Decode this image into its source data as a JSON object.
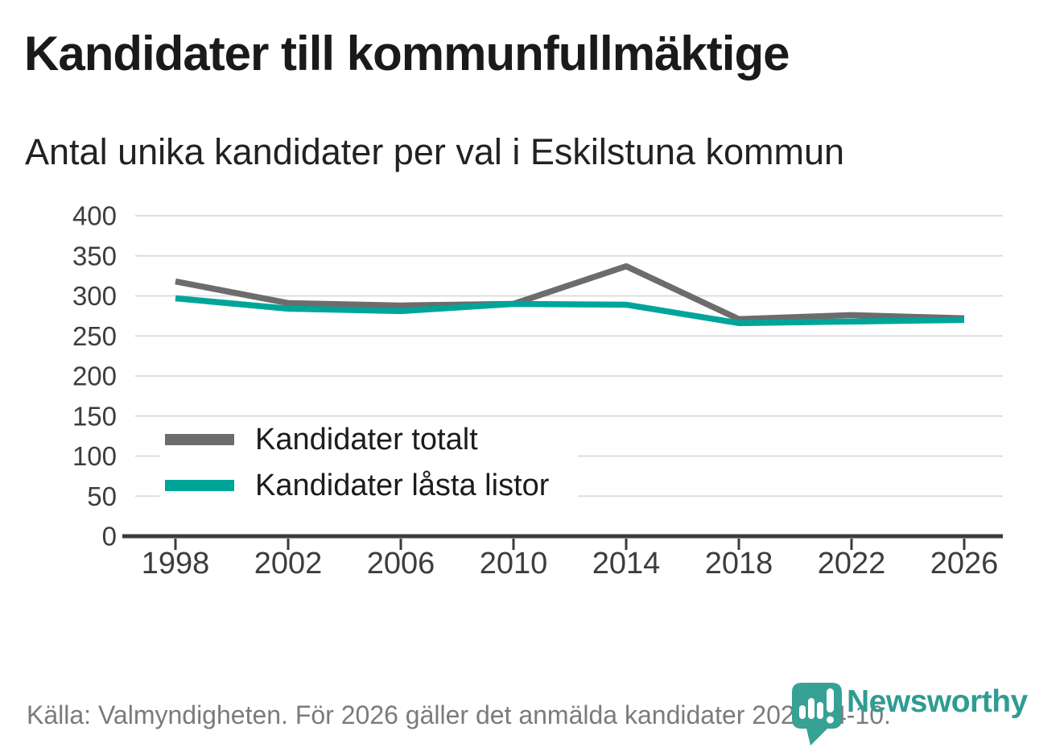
{
  "header": {
    "title": "Kandidater till kommunfullmäktige",
    "subtitle": "Antal unika kandidater per val i Eskilstuna kommun"
  },
  "footer": {
    "source": "Källa: Valmyndigheten. För 2026 gäller det anmälda kandidater 2026-04-10.",
    "brand": "Newsworthy"
  },
  "colors": {
    "series_total_gray": "#6c6c6c",
    "series_locked_teal": "#00a59a",
    "logo_teal": "#37a195",
    "grid": "#dedede",
    "axis": "#3b3b3b",
    "tick_text": "#3d3d3d",
    "title_text": "#1a1a19",
    "muted_text": "#7b7b7b"
  },
  "chart_data": {
    "type": "line",
    "title": "Kandidater till kommunfullmäktige",
    "subtitle": "Antal unika kandidater per val i Eskilstuna kommun",
    "x": [
      1998,
      2002,
      2006,
      2010,
      2014,
      2018,
      2022,
      2026
    ],
    "series": [
      {
        "name": "Kandidater totalt",
        "color": "#6c6c6c",
        "values": [
          318,
          291,
          288,
          290,
          337,
          271,
          276,
          272
        ]
      },
      {
        "name": "Kandidater låsta listor",
        "color": "#00a59a",
        "values": [
          297,
          284,
          281,
          290,
          289,
          266,
          268,
          270
        ]
      }
    ],
    "xlabel": "",
    "ylabel": "",
    "ylim": [
      0,
      400
    ],
    "yticks": [
      0,
      50,
      100,
      150,
      200,
      250,
      300,
      350,
      400
    ],
    "grid": "horizontal",
    "legend_position": "inside-bottom-left"
  }
}
